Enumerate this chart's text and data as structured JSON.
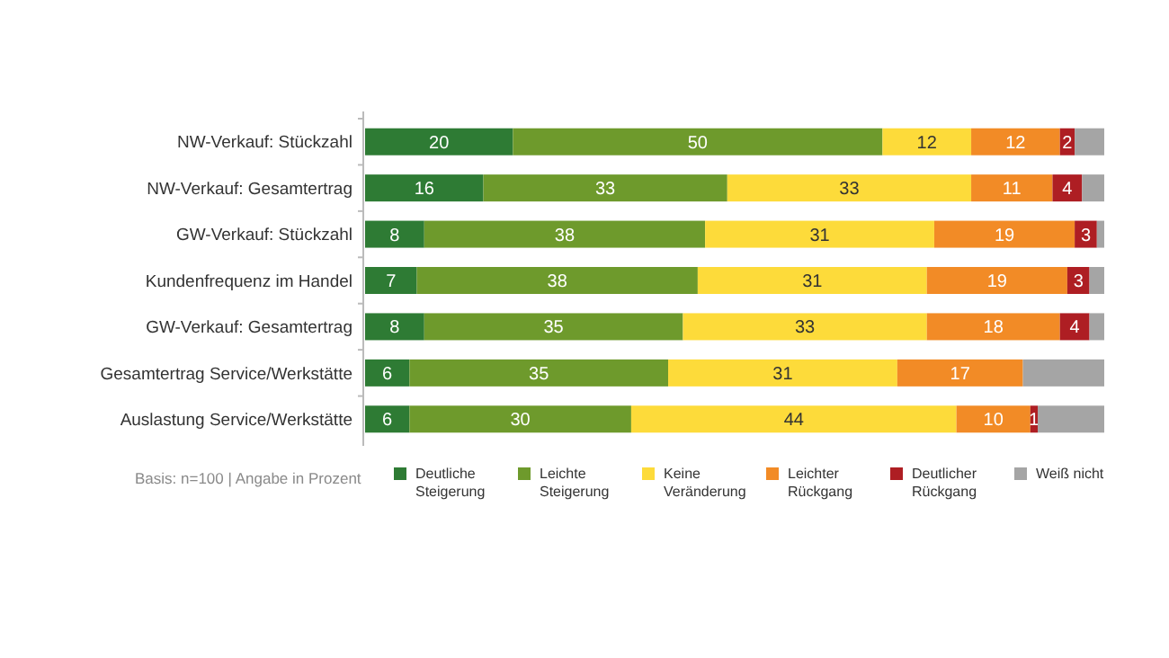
{
  "chart_data": {
    "type": "bar",
    "orientation": "horizontal",
    "stacked": true,
    "categories": [
      "NW-Verkauf: Stückzahl",
      "NW-Verkauf: Gesamtertrag",
      "GW-Verkauf: Stückzahl",
      "Kundenfrequenz im Handel",
      "GW-Verkauf: Gesamtertrag",
      "Gesamtertrag Service/Werkstätte",
      "Auslastung Service/Werkstätte"
    ],
    "series": [
      {
        "name": "Deutliche Steigerung",
        "color": "#2e7b34",
        "values": [
          20,
          16,
          8,
          7,
          8,
          6,
          6
        ],
        "value_labels": [
          "20",
          "16",
          "8",
          "7",
          "8",
          "6",
          "6"
        ]
      },
      {
        "name": "Leichte Steigerung",
        "color": "#6e9a2c",
        "values": [
          50,
          33,
          38,
          38,
          35,
          35,
          30
        ],
        "value_labels": [
          "50",
          "33",
          "38",
          "38",
          "35",
          "35",
          "30"
        ]
      },
      {
        "name": "Keine Veränderung",
        "color": "#fddb3a",
        "values": [
          12,
          33,
          31,
          31,
          33,
          31,
          44
        ],
        "value_labels": [
          "12",
          "33",
          "31",
          "31",
          "33",
          "31",
          "44"
        ]
      },
      {
        "name": "Leichter Rückgang",
        "color": "#f28b26",
        "values": [
          12,
          11,
          19,
          19,
          18,
          17,
          10
        ],
        "value_labels": [
          "12",
          "11",
          "19",
          "19",
          "18",
          "17",
          "10"
        ]
      },
      {
        "name": "Deutlicher Rückgang",
        "color": "#ae1e23",
        "values": [
          2,
          4,
          3,
          3,
          4,
          null,
          1
        ],
        "value_labels": [
          "2",
          "4",
          "3",
          "3",
          "4",
          null,
          "1"
        ]
      },
      {
        "name": "Weiß nicht",
        "color": "#a5a5a5",
        "values": [
          4,
          3,
          1,
          2,
          2,
          11,
          9
        ],
        "value_labels": [
          null,
          null,
          null,
          null,
          null,
          null,
          null
        ]
      }
    ],
    "legend": "bottom",
    "annotations": [
      "Basis: n=100 | Angabe in Prozent"
    ]
  }
}
